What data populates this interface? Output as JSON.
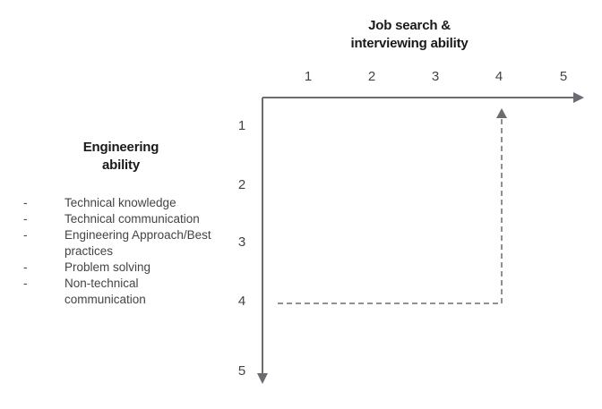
{
  "x_axis": {
    "title_lines": [
      "Job search &",
      "interviewing ability"
    ],
    "ticks": [
      "1",
      "2",
      "3",
      "4",
      "5"
    ]
  },
  "y_axis": {
    "title_lines": [
      "Engineering",
      "ability"
    ],
    "ticks": [
      "1",
      "2",
      "3",
      "4",
      "5"
    ]
  },
  "skills": [
    {
      "bullet": "-",
      "label": "Technical knowledge"
    },
    {
      "bullet": "-",
      "label": "Technical communication"
    },
    {
      "bullet": "-",
      "label": "Engineering Approach/Best practices"
    },
    {
      "bullet": "-",
      "label": "Problem solving"
    },
    {
      "bullet": "-",
      "label": "Non-technical communication"
    }
  ],
  "marker": {
    "x": 4,
    "y": 4
  },
  "colors": {
    "axis": "#6b6b72",
    "guide": "#6b6b72",
    "text": "#444444",
    "title": "#1a1a1a"
  }
}
